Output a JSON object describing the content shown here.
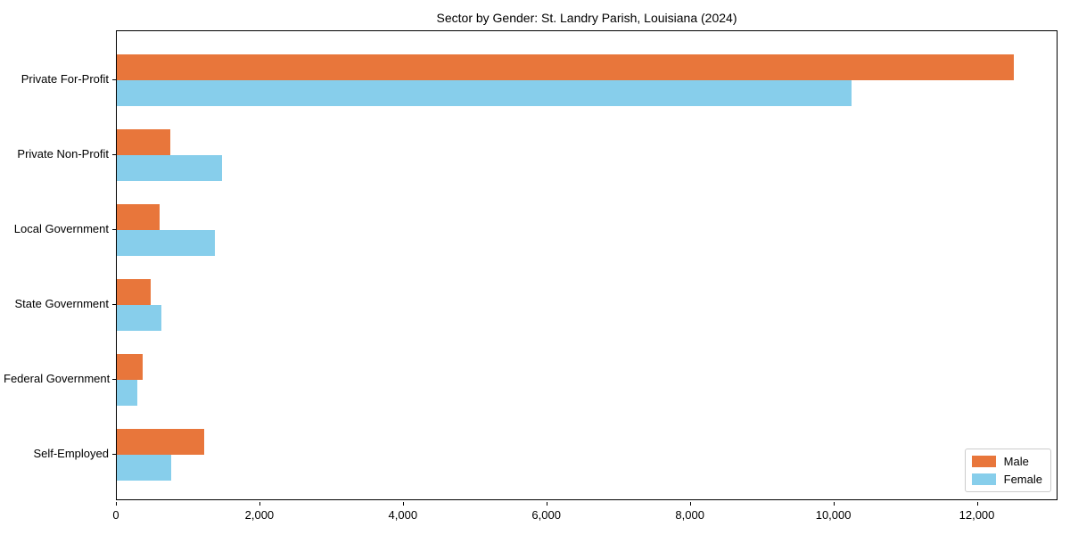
{
  "chart_data": {
    "type": "bar",
    "orientation": "horizontal",
    "title": "Sector by Gender: St. Landry Parish, Louisiana (2024)",
    "categories": [
      "Private For-Profit",
      "Private Non-Profit",
      "Local Government",
      "State Government",
      "Federal Government",
      "Self-Employed"
    ],
    "series": [
      {
        "name": "Male",
        "color": "#e8763b",
        "values": [
          12500,
          740,
          590,
          470,
          365,
          1220
        ]
      },
      {
        "name": "Female",
        "color": "#87ceeb",
        "values": [
          10240,
          1460,
          1370,
          620,
          285,
          760
        ]
      }
    ],
    "xlabel": "",
    "ylabel": "",
    "xlim": [
      0,
      13125
    ],
    "xticks": [
      0,
      2000,
      4000,
      6000,
      8000,
      10000,
      12000
    ],
    "xtick_labels": [
      "0",
      "2,000",
      "4,000",
      "6,000",
      "8,000",
      "10,000",
      "12,000"
    ],
    "grid": false,
    "legend": {
      "position": "lower right",
      "entries": [
        "Male",
        "Female"
      ]
    },
    "plot_border_color": "#000000",
    "background_color": "#ffffff"
  }
}
